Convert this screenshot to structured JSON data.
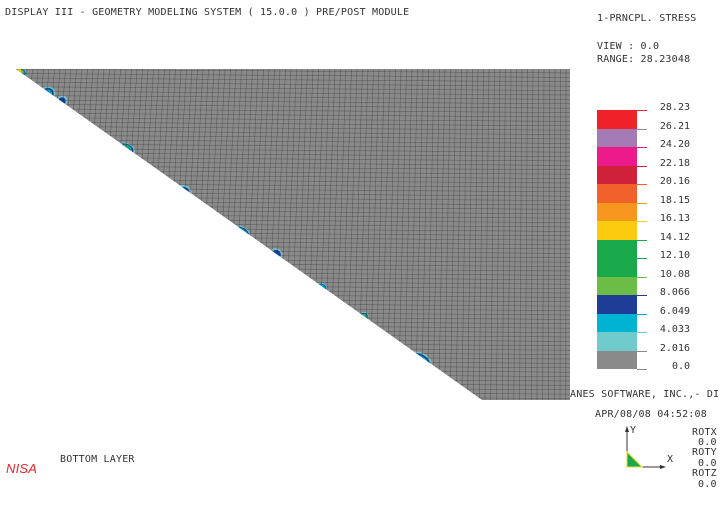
{
  "header": {
    "title": "DISPLAY III - GEOMETRY MODELING SYSTEM ( 15.0.0 )  PRE/POST MODULE"
  },
  "result": {
    "quantity": "1-PRNCPL. STRESS",
    "view": "VIEW : 0.0",
    "range": "RANGE: 28.23048"
  },
  "legend": {
    "labels": [
      "28.23",
      "26.21",
      "24.20",
      "22.18",
      "20.16",
      "18.15",
      "16.13",
      "14.12",
      "12.10",
      "10.08",
      "8.066",
      "6.049",
      "4.033",
      "2.016",
      "0.0"
    ],
    "colors": [
      "#ee2228",
      "#a57bb5",
      "#ec1a8a",
      "#d0213a",
      "#f1612b",
      "#f7961e",
      "#fccb10",
      "#1aa94a",
      "#1aa94a",
      "#6cbd45",
      "#1d3d97",
      "#00b3d3",
      "#70cccc",
      "#8a8a8a"
    ]
  },
  "footer": {
    "company": "ANES SOFTWARE, INC.,- DIS",
    "datetime": "APR/08/08 04:52:08",
    "layer": "BOTTOM LAYER",
    "logo": "NISA",
    "axes": {
      "x": "X",
      "y": "Y"
    },
    "rotations": [
      {
        "label": "ROTX",
        "value": "0.0"
      },
      {
        "label": "ROTY",
        "value": "0.0"
      },
      {
        "label": "ROTZ",
        "value": "0.0"
      }
    ]
  }
}
